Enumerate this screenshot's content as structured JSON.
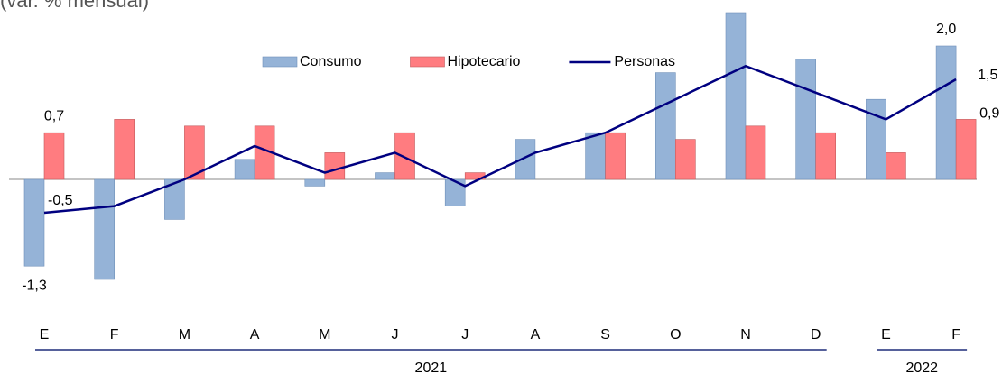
{
  "chart_data": {
    "type": "bar-line",
    "title": "(var. % mensual)",
    "groups": [
      {
        "label": "2021",
        "categories": [
          "E",
          "F",
          "M",
          "A",
          "M",
          "J",
          "J",
          "A",
          "S",
          "O",
          "N",
          "D"
        ]
      },
      {
        "label": "2022",
        "categories": [
          "E",
          "F"
        ]
      }
    ],
    "series": [
      {
        "name": "Consumo",
        "type": "bar",
        "color": "#95b3d7",
        "values": [
          -1.3,
          -1.5,
          -0.6,
          0.3,
          -0.1,
          0.1,
          -0.4,
          0.6,
          0.7,
          1.6,
          2.5,
          1.8,
          1.2,
          2.0
        ],
        "value_labels": [
          "-1,3",
          null,
          null,
          null,
          null,
          null,
          null,
          null,
          null,
          null,
          null,
          null,
          null,
          "2,0"
        ]
      },
      {
        "name": "Hipotecario",
        "type": "bar",
        "color": "#ff7c80",
        "values": [
          0.7,
          0.9,
          0.8,
          0.8,
          0.4,
          0.7,
          0.1,
          0.0,
          0.7,
          0.6,
          0.8,
          0.7,
          0.4,
          0.9
        ],
        "value_labels": [
          "0,7",
          null,
          null,
          null,
          null,
          null,
          null,
          null,
          null,
          null,
          null,
          null,
          null,
          "0,9"
        ]
      },
      {
        "name": "Personas",
        "type": "line",
        "color": "#000080",
        "values": [
          -0.5,
          -0.4,
          0.0,
          0.5,
          0.1,
          0.4,
          -0.1,
          0.4,
          0.7,
          1.2,
          1.7,
          1.3,
          0.9,
          1.5
        ],
        "value_labels": [
          "-0,5",
          null,
          null,
          null,
          null,
          null,
          null,
          null,
          null,
          null,
          null,
          null,
          null,
          "1,5"
        ]
      }
    ]
  }
}
